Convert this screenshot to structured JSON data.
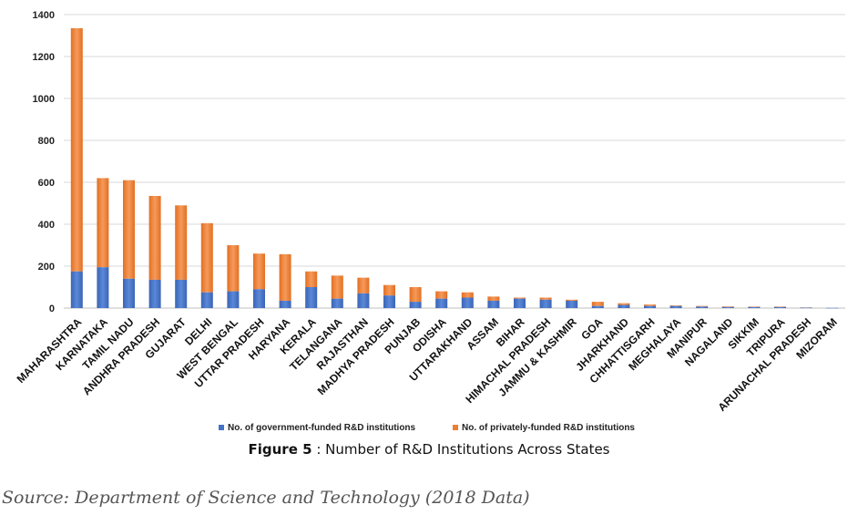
{
  "chart_data": {
    "type": "bar",
    "stacked": true,
    "categories": [
      "MAHARASHTRA",
      "KARNATAKA",
      "TAMIL NADU",
      "ANDHRA PRADESH",
      "GUJARAT",
      "DELHI",
      "WEST BENGAL",
      "UTTAR PRADESH",
      "HARYANA",
      "KERALA",
      "TELANGANA",
      "RAJASTHAN",
      "MADHYA PRADESH",
      "PUNJAB",
      "ODISHA",
      "UTTARAKHAND",
      "ASSAM",
      "BIHAR",
      "HIMACHAL PRADESH",
      "JAMMU & KASHMIR",
      "GOA",
      "JHARKHAND",
      "CHHATTISGARH",
      "MEGHALAYA",
      "MANIPUR",
      "NAGALAND",
      "SIKKIM",
      "TRIPURA",
      "ARUNACHAL PRADESH",
      "MIZORAM"
    ],
    "series": [
      {
        "name": "No. of government-funded R&D institutions",
        "color": "#4472C4",
        "values": [
          175,
          195,
          140,
          135,
          135,
          75,
          80,
          90,
          35,
          100,
          45,
          70,
          60,
          30,
          45,
          50,
          35,
          45,
          40,
          35,
          10,
          15,
          10,
          10,
          7,
          5,
          5,
          5,
          2,
          1
        ]
      },
      {
        "name": "No. of privately-funded R&D institutions",
        "color": "#ED7D31",
        "values": [
          1160,
          425,
          470,
          400,
          355,
          330,
          220,
          170,
          222,
          75,
          110,
          75,
          50,
          70,
          35,
          25,
          20,
          5,
          10,
          5,
          20,
          8,
          7,
          3,
          3,
          3,
          2,
          2,
          1,
          0
        ]
      }
    ],
    "yticks": [
      "0",
      "200",
      "400",
      "600",
      "800",
      "1000",
      "1200",
      "1400"
    ],
    "ylim": [
      0,
      1400
    ],
    "grid": true,
    "legend_position": "bottom"
  },
  "caption": {
    "label": "Figure 5",
    "text": " : Number of R&D Institutions Across States"
  },
  "source": "Source: Department of Science and Technology (2018 Data)"
}
